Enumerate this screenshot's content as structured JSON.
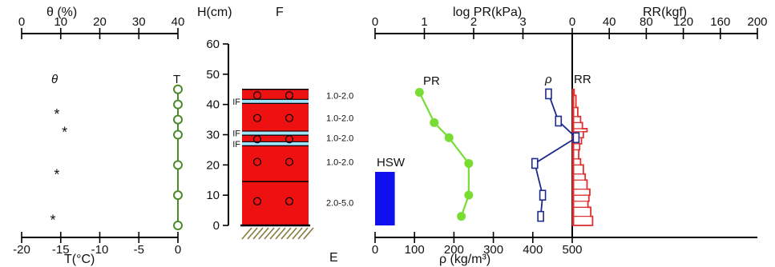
{
  "chart_data": {
    "type": "snow-pit-profile",
    "station": "F",
    "bottom_marker": "E",
    "left_panel": {
      "theta_axis": {
        "label": "θ (%)",
        "ticks": [
          0,
          10,
          20,
          30,
          40
        ],
        "range": [
          0,
          40
        ]
      },
      "temp_axis": {
        "label": "T(°C)",
        "ticks": [
          -20,
          -15,
          -10,
          -5,
          0
        ],
        "range": [
          -20,
          0
        ]
      },
      "theta_series_label": "θ",
      "temp_series_label": "T",
      "theta_points": [
        {
          "value": 9,
          "height": 37
        },
        {
          "value": 11,
          "height": 31
        },
        {
          "value": 9,
          "height": 17
        },
        {
          "value": 8,
          "height": 2
        }
      ],
      "temperature_points": [
        {
          "value": 0,
          "height": 45
        },
        {
          "value": 0,
          "height": 40
        },
        {
          "value": 0,
          "height": 35
        },
        {
          "value": 0,
          "height": 30
        },
        {
          "value": 0,
          "height": 20
        },
        {
          "value": 0,
          "height": 10
        },
        {
          "value": 0,
          "height": 0
        }
      ]
    },
    "height_axis": {
      "label": "H(cm)",
      "ticks": [
        0,
        10,
        20,
        30,
        40,
        50,
        60
      ],
      "range": [
        0,
        60
      ]
    },
    "layers": {
      "snow_top": 45,
      "ice_films": [
        {
          "height": 41,
          "label": "IF"
        },
        {
          "height": 30.5,
          "label": "IF"
        },
        {
          "height": 27,
          "label": "IF"
        }
      ],
      "boundaries": [
        45,
        14.5
      ],
      "grain_symbols": [
        {
          "height": 43,
          "count": 2
        },
        {
          "height": 35.5,
          "count": 2
        },
        {
          "height": 28.5,
          "count": 2
        },
        {
          "height": 21,
          "count": 2
        },
        {
          "height": 8,
          "count": 2
        }
      ],
      "grain_sizes": [
        {
          "height": 43,
          "text": "1.0-2.0"
        },
        {
          "height": 35.5,
          "text": "1.0-2.0"
        },
        {
          "height": 29,
          "text": "1.0-2.0"
        },
        {
          "height": 21,
          "text": "1.0-2.0"
        },
        {
          "height": 7.5,
          "text": "2.0-5.0"
        }
      ]
    },
    "right_panel": {
      "pr_axis": {
        "label": "log PR(kPa)",
        "ticks": [
          0,
          1,
          2,
          3
        ],
        "range": [
          0,
          4
        ]
      },
      "rr_axis": {
        "label": "RR(kgf)",
        "ticks": [
          0,
          40,
          80,
          120,
          160,
          200
        ],
        "range": [
          0,
          200
        ]
      },
      "rho_axis": {
        "label": "ρ (kg/m³)",
        "ticks": [
          0,
          100,
          200,
          300,
          400,
          500
        ],
        "range": [
          0,
          500
        ]
      },
      "hsw": {
        "label": "HSW",
        "value": 50
      },
      "pr_series_label": "PR",
      "rho_series_label": "ρ",
      "rr_series_label": "RR",
      "pr_points": [
        {
          "value": 0.9,
          "height": 44
        },
        {
          "value": 1.2,
          "height": 34
        },
        {
          "value": 1.5,
          "height": 29
        },
        {
          "value": 1.9,
          "height": 20.5
        },
        {
          "value": 1.9,
          "height": 10
        },
        {
          "value": 1.75,
          "height": 3
        }
      ],
      "density_points": [
        {
          "value": 440,
          "height": 43.5
        },
        {
          "value": 465,
          "height": 34.5
        },
        {
          "value": 510,
          "height": 29
        },
        {
          "value": 405,
          "height": 20.5
        },
        {
          "value": 425,
          "height": 10
        },
        {
          "value": 420,
          "height": 3
        }
      ],
      "rr_steps": [
        {
          "top": 45,
          "bottom": 43,
          "value": 2
        },
        {
          "top": 43,
          "bottom": 39,
          "value": 4
        },
        {
          "top": 39,
          "bottom": 36,
          "value": 6
        },
        {
          "top": 36,
          "bottom": 34,
          "value": 9
        },
        {
          "top": 34,
          "bottom": 32,
          "value": 11
        },
        {
          "top": 32,
          "bottom": 31,
          "value": 16
        },
        {
          "top": 31,
          "bottom": 29,
          "value": 12
        },
        {
          "top": 29,
          "bottom": 27,
          "value": 10
        },
        {
          "top": 27,
          "bottom": 25,
          "value": 8
        },
        {
          "top": 25,
          "bottom": 22,
          "value": 7
        },
        {
          "top": 22,
          "bottom": 20,
          "value": 9
        },
        {
          "top": 20,
          "bottom": 17,
          "value": 12
        },
        {
          "top": 17,
          "bottom": 15,
          "value": 14
        },
        {
          "top": 15,
          "bottom": 12,
          "value": 16
        },
        {
          "top": 12,
          "bottom": 10,
          "value": 19
        },
        {
          "top": 10,
          "bottom": 8,
          "value": 18
        },
        {
          "top": 8,
          "bottom": 6,
          "value": 17
        },
        {
          "top": 6,
          "bottom": 3,
          "value": 20
        },
        {
          "top": 3,
          "bottom": 0,
          "value": 22
        }
      ]
    },
    "colors": {
      "temperature": "#4c8a2a",
      "pr": "#77dd33",
      "density": "#1c2a8c",
      "rr": "#e03030",
      "hsw": "#1010ee",
      "snow": "#ee1111",
      "ice_film": "#9fe3ff",
      "ground": "#8a7a3a"
    }
  }
}
